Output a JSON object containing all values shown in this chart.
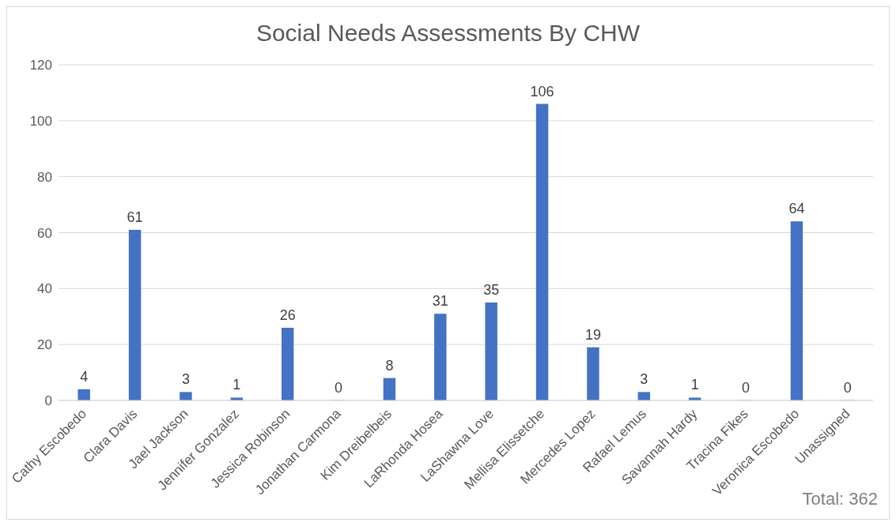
{
  "chart_data": {
    "type": "bar",
    "title": "Social Needs Assessments By CHW",
    "categories": [
      "Cathy Escobedo",
      "Clara Davis",
      "Jael Jackson",
      "Jennifer Gonzalez",
      "Jessica Robinson",
      "Jonathan Carmona",
      "Kim Dreibelbeis",
      "LaRhonda Hosea",
      "LaShawna Love",
      "Mellisa Elissetche",
      "Mercedes Lopez",
      "Rafael Lemus",
      "Savannah Hardy",
      "Tracina Fikes",
      "Veronica Escobedo",
      "Unassigned"
    ],
    "values": [
      4,
      61,
      3,
      1,
      26,
      0,
      8,
      31,
      35,
      106,
      19,
      3,
      1,
      0,
      64,
      0
    ],
    "color": "#4472c4",
    "ylim": [
      0,
      120
    ],
    "yticks": [
      0,
      20,
      40,
      60,
      80,
      100,
      120
    ],
    "grid": "y",
    "data_labels": true,
    "annotations": [
      "Total: 362"
    ]
  }
}
